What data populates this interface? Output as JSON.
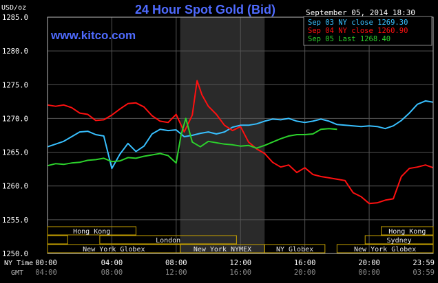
{
  "chart_data": {
    "type": "line",
    "title": "24 Hour Spot Gold (Bid)",
    "watermark": "www.kitco.com",
    "ylabel": "USD/oz",
    "timestamp": "September 05, 2014 18:30",
    "ylim": [
      1250,
      1285
    ],
    "y_ticks": [
      "1285.0",
      "1280.0",
      "1275.0",
      "1270.0",
      "1265.0",
      "1260.0",
      "1255.0",
      "1250.0"
    ],
    "x_row_label_ny": "NY Time",
    "x_row_label_gmt": "GMT",
    "x_ticks_ny": [
      "00:00",
      "04:00",
      "08:00",
      "12:00",
      "16:00",
      "20:00",
      "23:59"
    ],
    "x_ticks_gmt": [
      "04:00",
      "08:00",
      "12:00",
      "16:00",
      "20:00",
      "00:00",
      "03:59"
    ],
    "grid": true,
    "legend_position": "top-right",
    "series": [
      {
        "name": "Sep 03 NY close 1269.30",
        "color": "#38c0ff",
        "x": [
          0,
          0.5,
          1,
          1.5,
          2,
          2.5,
          3,
          3.5,
          4,
          4.5,
          5,
          5.5,
          6,
          6.5,
          7,
          7.5,
          8,
          8.5,
          9,
          9.5,
          10,
          10.5,
          11,
          11.5,
          12,
          12.5,
          13,
          13.5,
          14,
          14.5,
          15,
          15.5,
          16,
          16.5,
          17,
          17.5,
          18,
          18.5,
          19,
          19.5,
          20,
          20.5,
          21,
          21.5,
          22,
          22.5,
          23,
          23.5,
          23.98
        ],
        "y": [
          1265.8,
          1266.2,
          1266.6,
          1267.3,
          1268.0,
          1268.1,
          1267.6,
          1267.4,
          1262.6,
          1264.7,
          1266.3,
          1265.1,
          1265.9,
          1267.7,
          1268.4,
          1268.2,
          1268.3,
          1267.3,
          1267.5,
          1267.8,
          1268.0,
          1267.7,
          1268.0,
          1268.7,
          1269.0,
          1269.0,
          1269.2,
          1269.6,
          1269.9,
          1269.8,
          1270.0,
          1269.6,
          1269.4,
          1269.6,
          1269.9,
          1269.6,
          1269.1,
          1269.0,
          1268.9,
          1268.8,
          1268.9,
          1268.8,
          1268.5,
          1268.9,
          1269.7,
          1270.8,
          1272.1,
          1272.6,
          1272.4
        ]
      },
      {
        "name": "Sep 04 NY close 1260.90",
        "color": "#ff1010",
        "x": [
          0,
          0.5,
          1,
          1.5,
          2,
          2.5,
          3,
          3.5,
          4,
          4.5,
          5,
          5.5,
          6,
          6.5,
          7,
          7.5,
          8,
          8.5,
          9,
          9.3,
          9.6,
          10,
          10.5,
          11,
          11.5,
          12,
          12.5,
          13,
          13.5,
          14,
          14.5,
          15,
          15.5,
          16,
          16.5,
          17,
          17.5,
          18,
          18.5,
          19,
          19.5,
          20,
          20.5,
          21,
          21.5,
          22,
          22.5,
          23,
          23.5,
          23.98
        ],
        "y": [
          1272.0,
          1271.8,
          1272.0,
          1271.6,
          1270.8,
          1270.6,
          1269.7,
          1269.8,
          1270.5,
          1271.4,
          1272.2,
          1272.3,
          1271.7,
          1270.4,
          1269.6,
          1269.4,
          1270.6,
          1268.0,
          1270.5,
          1275.6,
          1273.5,
          1271.8,
          1270.6,
          1269.0,
          1268.2,
          1268.8,
          1266.5,
          1265.5,
          1264.8,
          1263.5,
          1262.8,
          1263.1,
          1262.0,
          1262.7,
          1261.7,
          1261.4,
          1261.2,
          1261.0,
          1260.8,
          1259.0,
          1258.4,
          1257.4,
          1257.5,
          1257.9,
          1258.1,
          1261.4,
          1262.6,
          1262.8,
          1263.1,
          1262.7
        ]
      },
      {
        "name": "Sep 05 Last 1268.40",
        "color": "#2cd22c",
        "x": [
          0,
          0.5,
          1,
          1.5,
          2,
          2.5,
          3,
          3.5,
          4,
          4.5,
          5,
          5.5,
          6,
          6.5,
          7,
          7.5,
          8,
          8.3,
          8.6,
          9,
          9.5,
          10,
          10.5,
          11,
          11.5,
          12,
          12.5,
          13,
          13.5,
          14,
          14.5,
          15,
          15.5,
          16,
          16.5,
          17,
          17.5,
          18
        ],
        "y": [
          1263.0,
          1263.3,
          1263.2,
          1263.4,
          1263.5,
          1263.8,
          1263.9,
          1264.1,
          1263.6,
          1263.7,
          1264.2,
          1264.1,
          1264.4,
          1264.6,
          1264.8,
          1264.5,
          1263.4,
          1267.5,
          1270.0,
          1266.5,
          1265.8,
          1266.6,
          1266.4,
          1266.2,
          1266.1,
          1265.9,
          1266.0,
          1265.6,
          1266.0,
          1266.5,
          1267.0,
          1267.4,
          1267.6,
          1267.6,
          1267.7,
          1268.4,
          1268.5,
          1268.4
        ]
      }
    ],
    "market_rows": [
      [
        {
          "label": "Hong Kong",
          "start": 0,
          "end": 5.5
        },
        {
          "label": "Hong Kong",
          "start": 20.75,
          "end": 23.98
        }
      ],
      [
        {
          "label": "",
          "start": 0,
          "end": 1.25
        },
        {
          "label": "London",
          "start": 3.25,
          "end": 11.75
        },
        {
          "label": "Sydney",
          "start": 19.75,
          "end": 23.98
        }
      ],
      [
        {
          "label": "New York Globex",
          "start": 0,
          "end": 8.25
        },
        {
          "label": "New York NYMEX",
          "start": 8.25,
          "end": 13.5
        },
        {
          "label": "NY Globex",
          "start": 13.5,
          "end": 17.25
        },
        {
          "label": "New York Globex",
          "start": 18,
          "end": 23.98
        }
      ]
    ],
    "shaded_range": [
      8.25,
      13.5
    ]
  }
}
